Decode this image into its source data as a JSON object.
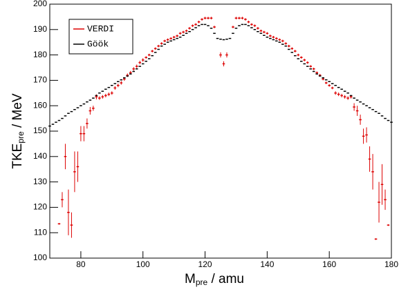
{
  "chart_data": {
    "type": "errorbar-scatter",
    "xlabel": [
      "M",
      "pre",
      " / amu"
    ],
    "ylabel": [
      "TKE",
      "pre",
      " / MeV"
    ],
    "xlim": [
      70,
      180
    ],
    "xticks": [
      80,
      100,
      120,
      140,
      160,
      180
    ],
    "ylim": [
      100,
      200
    ],
    "yticks": [
      100,
      110,
      120,
      130,
      140,
      150,
      160,
      170,
      180,
      190,
      200
    ],
    "legend": "top-left",
    "series": [
      {
        "name": "VERDI",
        "color": "#dd0000",
        "x": [
          73,
          74,
          75,
          76,
          77,
          78,
          79,
          80,
          81,
          82,
          83,
          84,
          85,
          86,
          87,
          88,
          89,
          90,
          91,
          92,
          93,
          94,
          95,
          96,
          97,
          98,
          99,
          100,
          101,
          102,
          103,
          104,
          105,
          106,
          107,
          108,
          109,
          110,
          111,
          112,
          113,
          114,
          115,
          116,
          117,
          118,
          119,
          120,
          121,
          122,
          123,
          125,
          126,
          127,
          129,
          130,
          131,
          132,
          133,
          134,
          135,
          136,
          137,
          138,
          139,
          140,
          141,
          142,
          143,
          144,
          145,
          146,
          147,
          148,
          149,
          150,
          151,
          152,
          153,
          154,
          155,
          156,
          157,
          158,
          159,
          160,
          161,
          162,
          163,
          164,
          165,
          166,
          167,
          168,
          169,
          170,
          171,
          172,
          173,
          174,
          175,
          176,
          177,
          178,
          179
        ],
        "values": [
          113.5,
          123,
          140,
          118,
          113,
          134,
          136,
          149,
          149,
          153,
          158,
          159,
          163.5,
          163,
          163.5,
          164,
          164.5,
          165,
          167,
          168,
          169,
          170.5,
          172,
          173,
          174.5,
          175.5,
          177,
          178,
          179,
          180,
          181.5,
          182.5,
          183.5,
          184.5,
          185.5,
          186,
          186.5,
          187,
          187.5,
          188.5,
          189,
          189.5,
          190.5,
          191.5,
          192,
          193,
          194,
          194.5,
          194.5,
          194.5,
          191,
          180,
          176.5,
          180,
          191,
          194.5,
          194.5,
          194.5,
          194,
          193,
          192,
          191.5,
          190.5,
          189.5,
          189,
          188.5,
          187.5,
          187,
          186.5,
          186,
          185.5,
          184.5,
          183.5,
          182.5,
          181.5,
          180,
          179,
          178,
          177,
          175.5,
          174.5,
          173,
          172,
          170.5,
          169,
          168,
          167,
          165,
          164.5,
          164,
          163.5,
          163,
          163.5,
          159.5,
          158,
          154.5,
          148,
          148.5,
          139,
          134,
          107.5,
          122,
          129,
          123,
          113
        ],
        "errors": [
          0.3,
          3,
          5,
          9,
          5,
          8,
          6,
          3,
          3,
          2,
          1.5,
          1,
          1,
          0.7,
          0.7,
          0.7,
          0.7,
          0.7,
          0.7,
          0.7,
          0.7,
          0.7,
          0.7,
          0.7,
          0.7,
          0.7,
          0.7,
          0.7,
          0.5,
          0.5,
          0.5,
          0.5,
          0.5,
          0.5,
          0.5,
          0.5,
          0.5,
          0.5,
          0.5,
          0.5,
          0.5,
          0.5,
          0.5,
          0.5,
          0.5,
          0.5,
          0.5,
          0.5,
          0.5,
          0.5,
          0.5,
          1,
          1,
          1,
          0.5,
          0.5,
          0.5,
          0.5,
          0.5,
          0.5,
          0.5,
          0.5,
          0.5,
          0.5,
          0.5,
          0.5,
          0.5,
          0.5,
          0.5,
          0.5,
          0.5,
          0.5,
          0.5,
          0.5,
          0.5,
          0.5,
          0.5,
          0.5,
          0.5,
          0.5,
          0.5,
          0.5,
          0.5,
          0.5,
          0.5,
          0.5,
          0.5,
          0.7,
          0.7,
          0.7,
          0.7,
          0.7,
          0.7,
          1.5,
          2,
          2,
          3,
          3,
          5,
          7,
          0.3,
          8,
          8,
          4,
          0.3
        ]
      },
      {
        "name": "Göök",
        "color": "#000000",
        "x": [
          70,
          71,
          72,
          73,
          74,
          75,
          76,
          77,
          78,
          79,
          80,
          81,
          82,
          83,
          84,
          85,
          86,
          87,
          88,
          89,
          90,
          91,
          92,
          93,
          94,
          95,
          96,
          97,
          98,
          99,
          100,
          101,
          102,
          103,
          104,
          105,
          106,
          107,
          108,
          109,
          110,
          111,
          112,
          113,
          114,
          115,
          116,
          117,
          118,
          119,
          120,
          121,
          122,
          123,
          124,
          125,
          126,
          127,
          128,
          129,
          130,
          131,
          132,
          133,
          134,
          135,
          136,
          137,
          138,
          139,
          140,
          141,
          142,
          143,
          144,
          145,
          146,
          147,
          148,
          149,
          150,
          151,
          152,
          153,
          154,
          155,
          156,
          157,
          158,
          159,
          160,
          161,
          162,
          163,
          164,
          165,
          166,
          167,
          168,
          169,
          170,
          171,
          172,
          173,
          174,
          175,
          176,
          177,
          178,
          179,
          180
        ],
        "values": [
          152,
          152.7,
          153.5,
          154.2,
          155,
          156,
          157,
          157.7,
          158.5,
          159.2,
          160,
          160.7,
          161.5,
          162.2,
          163,
          164,
          165,
          165.7,
          166.5,
          167.2,
          168,
          168.7,
          169.5,
          170.2,
          171,
          171.7,
          172.5,
          173.5,
          174.5,
          175.5,
          176.5,
          177.5,
          178.5,
          179.7,
          181,
          182.2,
          183.5,
          184.2,
          185,
          185.5,
          186,
          186.5,
          187,
          187.7,
          188.5,
          189.2,
          190,
          190.7,
          191.5,
          192,
          192,
          191.5,
          190.5,
          188.5,
          186.5,
          186.2,
          186,
          186.2,
          186.5,
          188.5,
          190.5,
          191.5,
          192,
          192,
          191.5,
          190.7,
          190,
          189.2,
          188.5,
          187.7,
          187,
          186.5,
          186,
          185.5,
          185,
          184.2,
          183.5,
          182.2,
          181,
          179.7,
          178.5,
          177.5,
          176.5,
          175.5,
          174.5,
          173.5,
          172.5,
          171.7,
          171,
          170.2,
          169.5,
          168.7,
          168,
          167.2,
          166.5,
          165.7,
          165,
          164,
          163,
          162.2,
          161.5,
          160.7,
          160,
          159.2,
          158.5,
          157.7,
          157,
          156,
          155,
          154.2,
          153.5
        ]
      }
    ]
  }
}
